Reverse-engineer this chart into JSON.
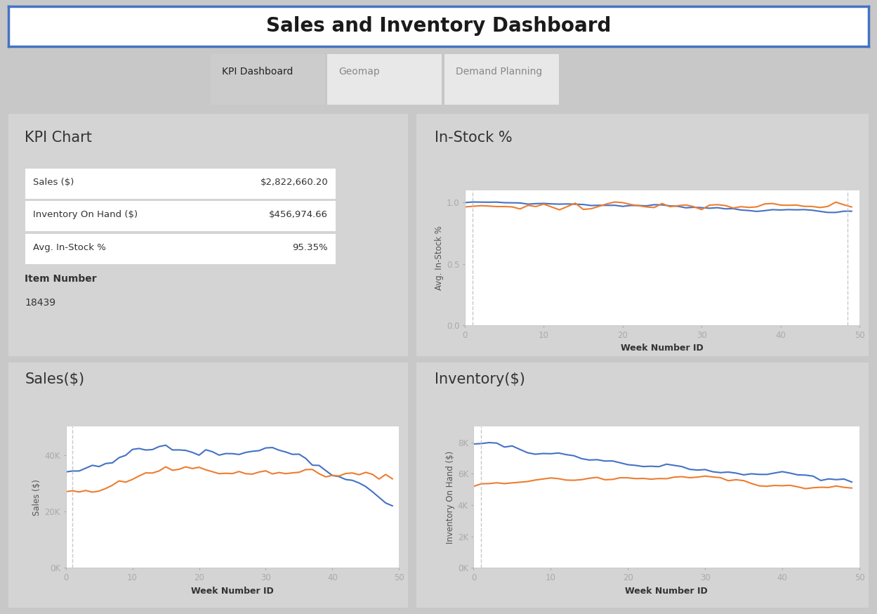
{
  "title": "Sales and Inventory Dashboard",
  "tabs": [
    "KPI Dashboard",
    "Geomap",
    "Demand Planning"
  ],
  "kpi_title": "KPI Chart",
  "kpi_rows": [
    {
      "label": "Sales ($)",
      "value": "$2,822,660.20"
    },
    {
      "label": "Inventory On Hand ($)",
      "value": "$456,974.66"
    },
    {
      "label": "Avg. In-Stock %",
      "value": "95.35%"
    }
  ],
  "item_number_label": "Item Number",
  "item_number_value": "18439",
  "instock_title": "In-Stock %",
  "instock_ylabel": "Avg. In-Stock %",
  "instock_xlabel": "Week Number ID",
  "sales_title": "Sales($)",
  "sales_ylabel": "Sales ($)",
  "sales_xlabel": "Week Number ID",
  "inventory_title": "Inventory($)",
  "inventory_ylabel": "Inventory On Hand ($)",
  "inventory_xlabel": "Week Number ID",
  "outer_bg": "#c8c8c8",
  "panel_color": "#d4d4d4",
  "title_bg": "#ffffff",
  "title_border_color": "#4472c4",
  "tab_active_color": "#cccccc",
  "tab_inactive_color": "#e8e8e8",
  "chart_bg_color": "#ffffff",
  "blue_line_color": "#4472c4",
  "orange_line_color": "#ed7d31",
  "dashed_line_color": "#bbbbbb"
}
